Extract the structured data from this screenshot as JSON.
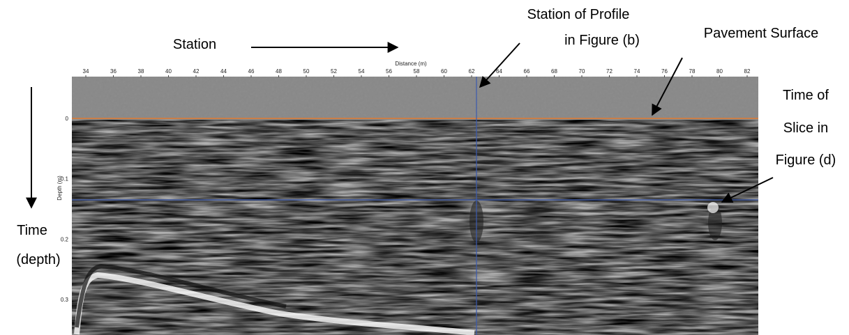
{
  "figure": {
    "x_axis": {
      "label": "Distance (m)",
      "ticks": [
        "34",
        "36",
        "38",
        "40",
        "42",
        "44",
        "46",
        "48",
        "50",
        "52",
        "54",
        "56",
        "58",
        "60",
        "62",
        "64",
        "66",
        "68",
        "70",
        "72",
        "74",
        "76",
        "78",
        "80",
        "82"
      ]
    },
    "y_axis": {
      "label": "Depth (m)",
      "ticks": [
        "0",
        "0.1",
        "0.2",
        "0.3"
      ]
    },
    "annotations": {
      "station": "Station",
      "station_profile": [
        "Station of Profile",
        "in Figure (b)"
      ],
      "pavement": "Pavement Surface",
      "time_slice": [
        "Time of",
        "Slice in",
        "Figure (d)"
      ],
      "time_depth": [
        "Time",
        "(depth)"
      ]
    }
  }
}
